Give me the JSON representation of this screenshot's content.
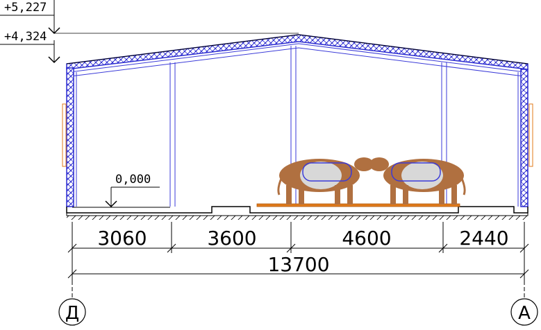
{
  "elevations": {
    "ridge": "+5,227",
    "eave": "+4,324",
    "floor": "0,000"
  },
  "dimensions": {
    "spans": [
      "3060",
      "3600",
      "4600",
      "2440"
    ],
    "total": "13700"
  },
  "axes": {
    "left": "Д",
    "right": "А"
  },
  "colors": {
    "insulation": "#2b2bd0",
    "wall_frame": "#3a3ad8",
    "floor_deck": "#e07a1a",
    "cow_brown": "#b07040",
    "cow_white": "#d8d8d8",
    "line": "#000000"
  }
}
